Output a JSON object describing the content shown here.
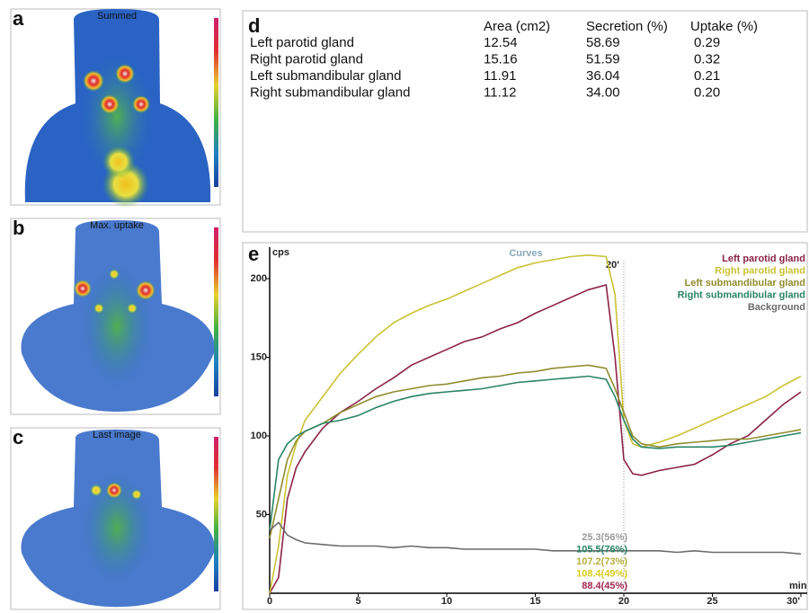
{
  "panels": [
    {
      "label": "a",
      "title": "Summed"
    },
    {
      "label": "b",
      "title": "Max. uptake"
    },
    {
      "label": "c",
      "title": "Last image"
    }
  ],
  "table": {
    "label": "d",
    "columns": [
      "Area (cm2)",
      "Secretion (%)",
      "Uptake (%)"
    ],
    "rows": [
      {
        "name": "Left parotid gland",
        "values": [
          "12.54",
          "58.69",
          "0.29"
        ]
      },
      {
        "name": "Right parotid gland",
        "values": [
          "15.16",
          "51.59",
          "0.32"
        ]
      },
      {
        "name": "Left submandibular gland",
        "values": [
          "11.91",
          "36.04",
          "0.21"
        ]
      },
      {
        "name": "Right submandibular gland",
        "values": [
          "11.12",
          "34.00",
          "0.20"
        ]
      }
    ]
  },
  "chart_data": {
    "type": "line",
    "label": "e",
    "title": "Curves",
    "y_label": "cps",
    "x_label": "min",
    "x": [
      0,
      0.5,
      1,
      1.5,
      2,
      3,
      4,
      5,
      6,
      7,
      8,
      9,
      10,
      11,
      12,
      13,
      14,
      15,
      16,
      17,
      18,
      19,
      19.5,
      20,
      20.5,
      21,
      22,
      23,
      24,
      25,
      26,
      27,
      28,
      29,
      30
    ],
    "series": [
      {
        "name": "Left parotid gland",
        "color": "#8b2346",
        "values": [
          0,
          10,
          60,
          80,
          90,
          105,
          115,
          122,
          130,
          137,
          145,
          150,
          155,
          160,
          163,
          168,
          172,
          178,
          183,
          188,
          193,
          196,
          150,
          85,
          76,
          75,
          78,
          80,
          82,
          88,
          95,
          100,
          110,
          120,
          128
        ]
      },
      {
        "name": "Right parotid gland",
        "color": "#c9c234",
        "values": [
          0,
          30,
          75,
          95,
          110,
          125,
          140,
          152,
          163,
          172,
          178,
          183,
          187,
          192,
          197,
          202,
          207,
          210,
          212,
          214,
          215,
          214,
          190,
          110,
          95,
          93,
          96,
          100,
          105,
          110,
          115,
          120,
          125,
          132,
          138
        ]
      },
      {
        "name": "Left submandibular gland",
        "color": "#8f8c2e",
        "values": [
          35,
          60,
          85,
          97,
          103,
          108,
          115,
          120,
          125,
          128,
          130,
          132,
          133,
          135,
          137,
          138,
          140,
          141,
          143,
          144,
          145,
          143,
          130,
          115,
          100,
          95,
          93,
          95,
          96,
          97,
          98,
          98,
          100,
          102,
          104
        ]
      },
      {
        "name": "Right submandibular gland",
        "color": "#2a8466",
        "values": [
          40,
          85,
          95,
          100,
          103,
          108,
          110,
          113,
          118,
          122,
          125,
          127,
          128,
          129,
          130,
          132,
          134,
          135,
          136,
          137,
          138,
          136,
          125,
          110,
          98,
          93,
          92,
          93,
          93,
          93,
          94,
          96,
          98,
          100,
          102
        ]
      },
      {
        "name": "Background",
        "color": "#6b6b6b",
        "values": [
          40,
          45,
          37,
          34,
          32,
          31,
          30,
          30,
          30,
          29,
          30,
          29,
          29,
          28,
          28,
          28,
          28,
          28,
          27,
          27,
          27,
          27,
          27,
          27,
          27,
          27,
          27,
          26,
          27,
          26,
          26,
          26,
          26,
          26,
          25
        ]
      }
    ],
    "xlim": [
      0,
      30
    ],
    "ylim": [
      0,
      220
    ],
    "xticks": [
      0,
      5,
      10,
      15,
      20,
      25,
      {
        "value": 30,
        "label": "30'"
      }
    ],
    "yticks": [
      50,
      100,
      150,
      200
    ],
    "marker": {
      "x": 20,
      "label": "20'"
    },
    "summary_labels": [
      {
        "text": "25.3(56%)",
        "color": "#9a9a9a"
      },
      {
        "text": "105.5(76%)",
        "color": "#2a8466"
      },
      {
        "text": "107.2(73%)",
        "color": "#b5b03a"
      },
      {
        "text": "108.4(49%)",
        "color": "#d8cc20"
      },
      {
        "text": "88.4(45%)",
        "color": "#a3264e"
      }
    ]
  }
}
